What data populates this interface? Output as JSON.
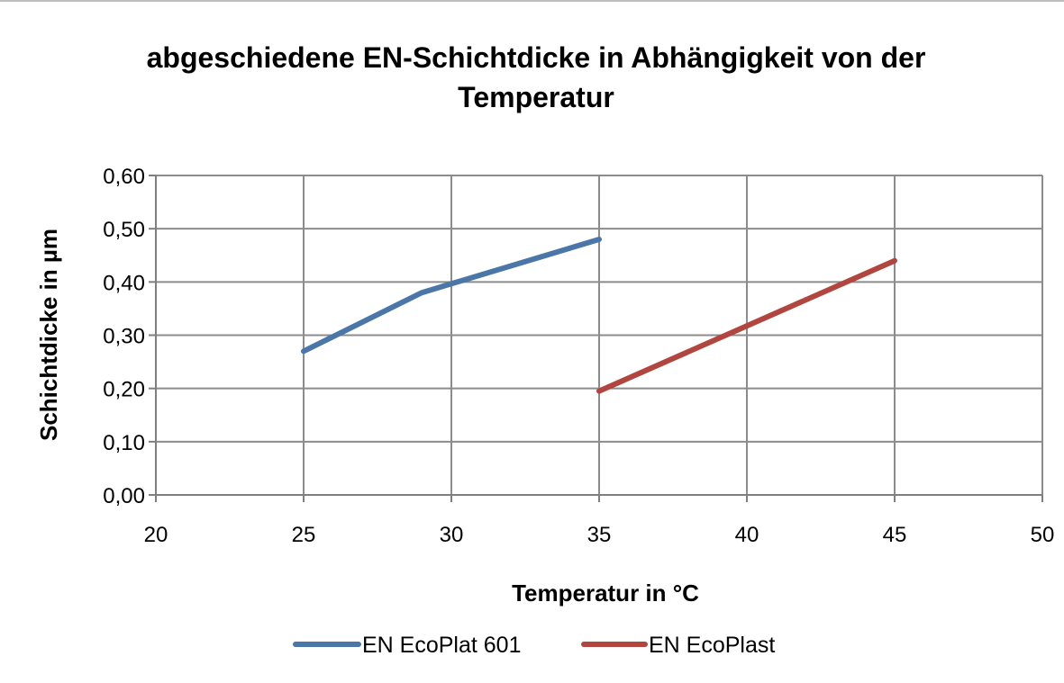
{
  "chart_data": {
    "type": "line",
    "title": "abgeschiedene EN-Schichtdicke in Abhängigkeit von der Temperatur",
    "xlabel": "Temperatur in °C",
    "ylabel": "Schichtdicke in µm",
    "xlim": [
      20,
      50
    ],
    "ylim": [
      0,
      0.6
    ],
    "x_ticks": [
      "20",
      "25",
      "30",
      "35",
      "40",
      "45",
      "50"
    ],
    "x_tick_values": [
      20,
      25,
      30,
      35,
      40,
      45,
      50
    ],
    "y_ticks": [
      "0,00",
      "0,10",
      "0,20",
      "0,30",
      "0,40",
      "0,50",
      "0,60"
    ],
    "y_tick_values": [
      0,
      0.1,
      0.2,
      0.3,
      0.4,
      0.5,
      0.6
    ],
    "grid": true,
    "legend_position": "bottom",
    "series": [
      {
        "name": "EN EcoPlat 601",
        "color": "#4a76a8",
        "x": [
          25,
          29,
          35
        ],
        "y": [
          0.27,
          0.38,
          0.48
        ]
      },
      {
        "name": "EN EcoPlast",
        "color": "#b0463f",
        "x": [
          35,
          45
        ],
        "y": [
          0.195,
          0.44
        ]
      }
    ]
  }
}
